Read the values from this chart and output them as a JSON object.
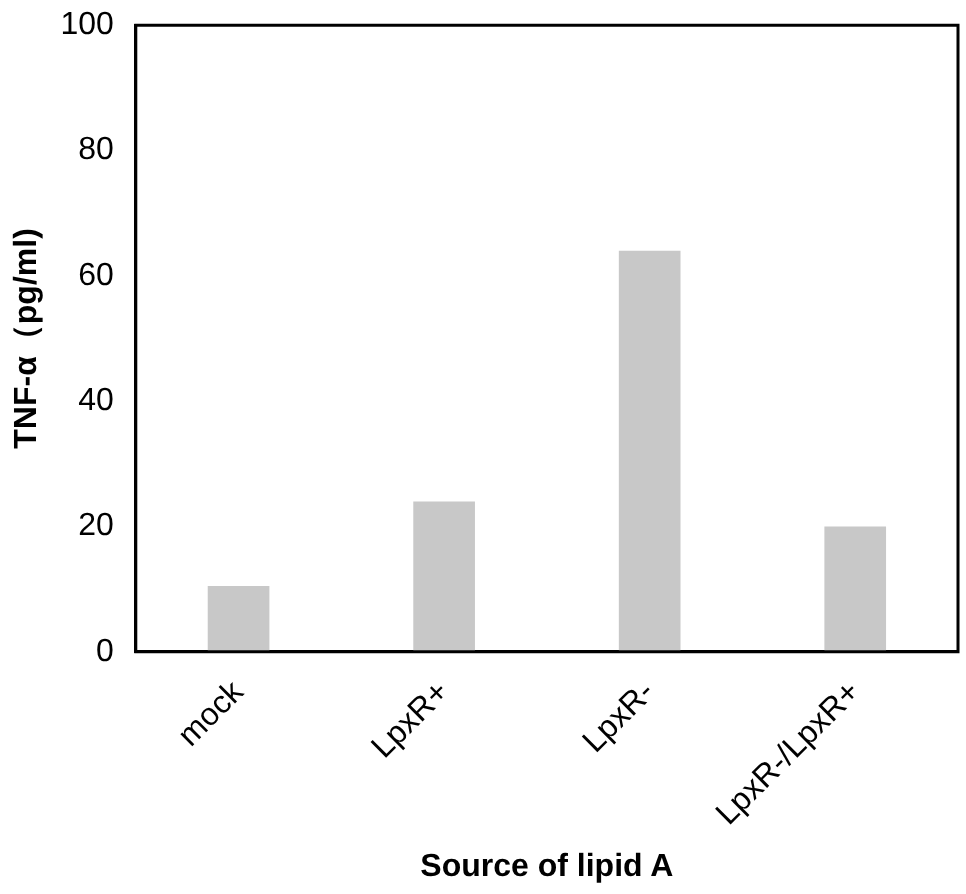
{
  "chart_data": {
    "type": "bar",
    "xlabel": "Source of lipid A",
    "ylabel": "TNF-α（pg/ml)",
    "categories": [
      "mock",
      "LpxR+",
      "LpxR-",
      "LpxR-/LpxR+"
    ],
    "values": [
      10.5,
      24,
      64,
      20
    ],
    "color": "#c8c8c8",
    "ylim": [
      0,
      100
    ],
    "yticks": [
      0,
      20,
      40,
      60,
      80,
      100
    ],
    "grid": false,
    "legend": false
  }
}
